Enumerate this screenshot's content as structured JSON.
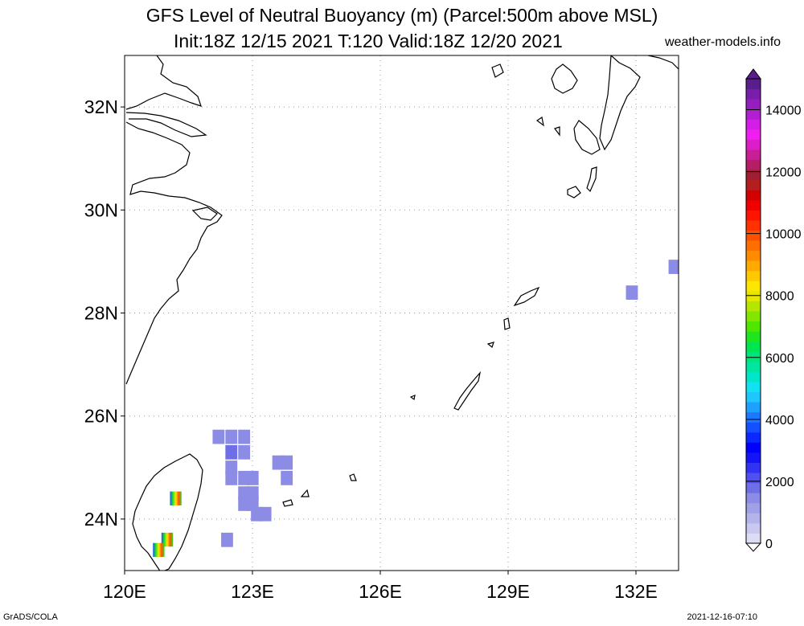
{
  "header": {
    "title_line1": "GFS Level of Neutral Buoyancy (m) (Parcel:500m above MSL)",
    "title_line2": "Init:18Z 12/15 2021 T:120 Valid:18Z 12/20 2021",
    "site": "weather-models.info"
  },
  "footer": {
    "left": "GrADS/COLA",
    "right": "2021-12-16-07:10"
  },
  "map": {
    "lat_labels": [
      {
        "text": "32N",
        "lat": 32
      },
      {
        "text": "30N",
        "lat": 30
      },
      {
        "text": "28N",
        "lat": 28
      },
      {
        "text": "26N",
        "lat": 26
      },
      {
        "text": "24N",
        "lat": 24
      }
    ],
    "lon_labels": [
      {
        "text": "120E",
        "lon": 120
      },
      {
        "text": "123E",
        "lon": 123
      },
      {
        "text": "126E",
        "lon": 126
      },
      {
        "text": "129E",
        "lon": 129
      },
      {
        "text": "132E",
        "lon": 132
      }
    ],
    "extent": {
      "lon_min": 120,
      "lon_max": 133,
      "lat_min": 23,
      "lat_max": 33
    },
    "gridlines": "dotted"
  },
  "colorbar": {
    "labels": [
      "14000",
      "12000",
      "10000",
      "8000",
      "6000",
      "4000",
      "2000",
      "0"
    ],
    "min": 0,
    "max": 15000,
    "colors": [
      "#dcdcf5",
      "#c8c8f0",
      "#b4b4eb",
      "#a0a0e6",
      "#8c8ce6",
      "#6e6ee6",
      "#5050f0",
      "#3232f5",
      "#1414f5",
      "#0000ff",
      "#0a28ff",
      "#1450ff",
      "#1e78ff",
      "#1ea0ff",
      "#1ec8ff",
      "#14e1f0",
      "#00e6c8",
      "#00e6a0",
      "#00e678",
      "#00e650",
      "#1ee61e",
      "#50e600",
      "#82e600",
      "#b4e600",
      "#e6e600",
      "#ffe600",
      "#ffc800",
      "#ffaa00",
      "#ff8c00",
      "#ff6e00",
      "#ff5000",
      "#ff3200",
      "#ff1400",
      "#f00000",
      "#d20000",
      "#b41e1e",
      "#a01e32",
      "#b41e64",
      "#c81e96",
      "#dc1ec8",
      "#f01ef0",
      "#d21ee6",
      "#b41ed2",
      "#961ebe",
      "#781eaa",
      "#5a1e8c"
    ]
  },
  "data_cells": [
    {
      "lon": 122.2,
      "lat": 25.6,
      "value": 1500
    },
    {
      "lon": 122.5,
      "lat": 25.6,
      "value": 1500
    },
    {
      "lon": 122.8,
      "lat": 25.6,
      "value": 1500
    },
    {
      "lon": 122.5,
      "lat": 25.3,
      "value": 1800
    },
    {
      "lon": 122.8,
      "lat": 25.3,
      "value": 1500
    },
    {
      "lon": 122.5,
      "lat": 25.0,
      "value": 1600
    },
    {
      "lon": 122.5,
      "lat": 24.8,
      "value": 1400
    },
    {
      "lon": 122.8,
      "lat": 24.8,
      "value": 1400
    },
    {
      "lon": 123.0,
      "lat": 24.8,
      "value": 1400
    },
    {
      "lon": 122.8,
      "lat": 24.5,
      "value": 1400
    },
    {
      "lon": 123.0,
      "lat": 24.5,
      "value": 1400
    },
    {
      "lon": 122.8,
      "lat": 24.3,
      "value": 1400
    },
    {
      "lon": 123.0,
      "lat": 24.3,
      "value": 1400
    },
    {
      "lon": 123.1,
      "lat": 24.1,
      "value": 1400
    },
    {
      "lon": 123.3,
      "lat": 24.1,
      "value": 1400
    },
    {
      "lon": 123.6,
      "lat": 25.1,
      "value": 1400
    },
    {
      "lon": 123.8,
      "lat": 25.1,
      "value": 1400
    },
    {
      "lon": 123.8,
      "lat": 24.8,
      "value": 1400
    },
    {
      "lon": 122.4,
      "lat": 23.6,
      "value": 1400
    },
    {
      "lon": 131.9,
      "lat": 28.4,
      "value": 1600
    },
    {
      "lon": 132.9,
      "lat": 28.9,
      "value": 1600
    }
  ],
  "hot_cells": [
    {
      "lon": 121.2,
      "lat": 24.4
    },
    {
      "lon": 121.0,
      "lat": 23.6
    },
    {
      "lon": 120.8,
      "lat": 23.4
    }
  ]
}
